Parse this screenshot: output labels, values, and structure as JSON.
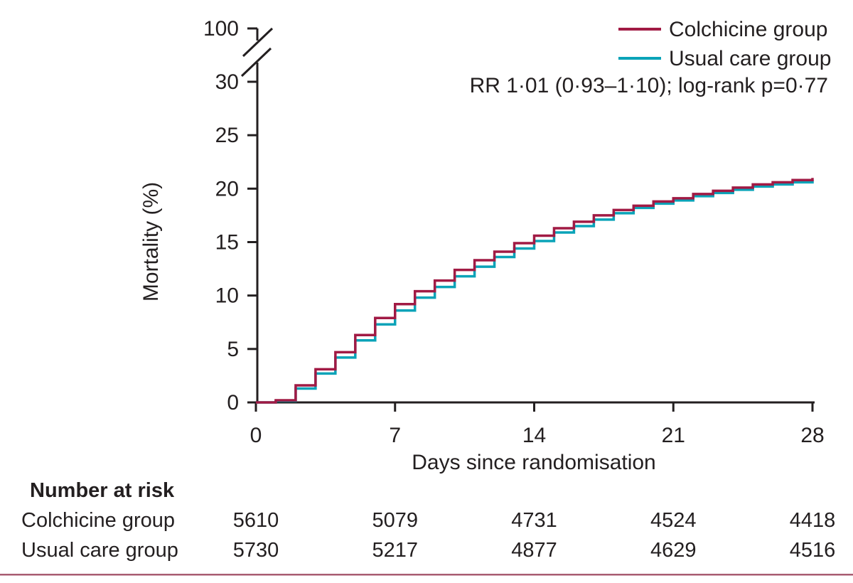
{
  "figure": {
    "y_axis": {
      "label": "Mortality (%)",
      "ticks": [
        0,
        5,
        10,
        15,
        20,
        25,
        30
      ],
      "break_top_tick": 100
    },
    "x_axis": {
      "label": "Days since randomisation",
      "ticks": [
        0,
        7,
        14,
        21,
        28
      ]
    },
    "legend": [
      {
        "label": "Colchicine group",
        "color": "#a11a44"
      },
      {
        "label": "Usual care group",
        "color": "#0aa3b8"
      }
    ],
    "annotation": "RR 1·01 (0·93–1·10); log-rank p=0·77",
    "colors": {
      "axis": "#231f20",
      "bottom_rule": "#a85c72",
      "colchicine": "#a11a44",
      "usual_care": "#0aa3b8"
    }
  },
  "chart_data": {
    "type": "line",
    "subtype": "kaplan-meier-step",
    "title": "",
    "xlabel": "Days since randomisation",
    "ylabel": "Mortality (%)",
    "xlim": [
      0,
      28
    ],
    "ylim_linear": [
      0,
      30
    ],
    "y_axis_break_to": 100,
    "x_ticks": [
      0,
      7,
      14,
      21,
      28
    ],
    "y_ticks": [
      0,
      5,
      10,
      15,
      20,
      25,
      30
    ],
    "grid": false,
    "legend_position": "top-right",
    "annotation": "RR 1·01 (0·93–1·10); log-rank p=0·77",
    "x": [
      0,
      1,
      2,
      3,
      4,
      5,
      6,
      7,
      8,
      9,
      10,
      11,
      12,
      13,
      14,
      15,
      16,
      17,
      18,
      19,
      20,
      21,
      22,
      23,
      24,
      25,
      26,
      27,
      28
    ],
    "series": [
      {
        "name": "Colchicine group",
        "color": "#a11a44",
        "values": [
          0,
          0.2,
          1.6,
          3.1,
          4.7,
          6.3,
          7.9,
          9.2,
          10.4,
          11.4,
          12.4,
          13.3,
          14.1,
          14.9,
          15.6,
          16.3,
          16.9,
          17.5,
          18.0,
          18.4,
          18.8,
          19.1,
          19.5,
          19.8,
          20.1,
          20.4,
          20.6,
          20.8,
          21.0
        ]
      },
      {
        "name": "Usual care group",
        "color": "#0aa3b8",
        "values": [
          0,
          0.15,
          1.3,
          2.7,
          4.2,
          5.8,
          7.3,
          8.6,
          9.8,
          10.8,
          11.8,
          12.7,
          13.6,
          14.4,
          15.1,
          15.9,
          16.5,
          17.1,
          17.7,
          18.2,
          18.6,
          18.9,
          19.3,
          19.6,
          19.9,
          20.2,
          20.4,
          20.6,
          20.8
        ]
      }
    ]
  },
  "risk_table": {
    "title": "Number at risk",
    "days": [
      0,
      7,
      14,
      21,
      28
    ],
    "rows": [
      {
        "label": "Colchicine group",
        "values": [
          "5610",
          "5079",
          "4731",
          "4524",
          "4418"
        ]
      },
      {
        "label": "Usual care group",
        "values": [
          "5730",
          "5217",
          "4877",
          "4629",
          "4516"
        ]
      }
    ]
  }
}
